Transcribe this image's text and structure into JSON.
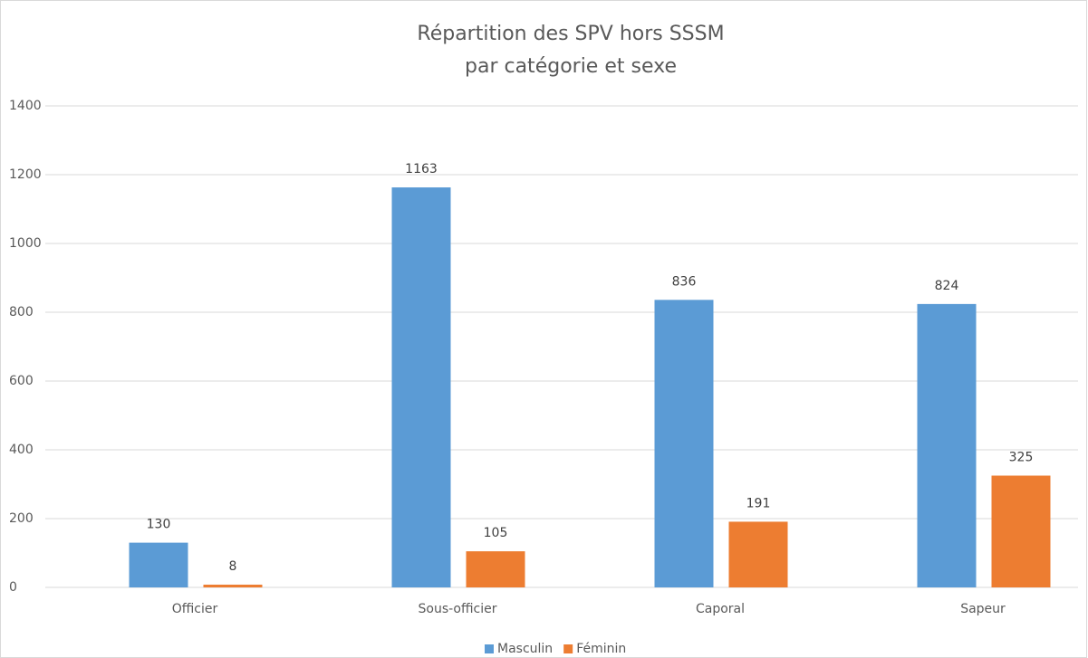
{
  "chart_data": {
    "type": "bar",
    "title": [
      "Répartition des SPV hors SSSM",
      "par catégorie et sexe"
    ],
    "categories": [
      "Officier",
      "Sous-officier",
      "Caporal",
      "Sapeur"
    ],
    "series": [
      {
        "name": "Masculin",
        "color": "#5b9bd5",
        "values": [
          130,
          1163,
          836,
          824
        ]
      },
      {
        "name": "Féminin",
        "color": "#ed7d31",
        "values": [
          8,
          105,
          191,
          325
        ]
      }
    ],
    "ylim": [
      0,
      1400
    ],
    "yticks": [
      0,
      200,
      400,
      600,
      800,
      1000,
      1200,
      1400
    ],
    "grid": true,
    "legend": "bottom"
  }
}
